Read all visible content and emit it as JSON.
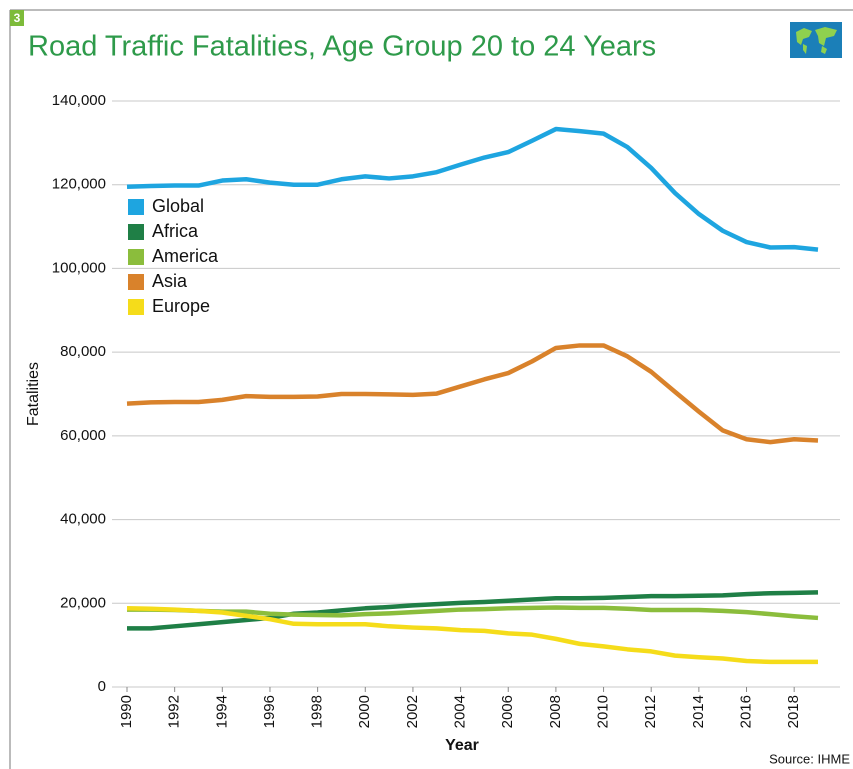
{
  "chart_data": {
    "type": "line",
    "badge": "3",
    "title": "Road Traffic Fatalities, Age Group 20 to 24 Years",
    "ylabel": "Fatalities",
    "xlabel": "Year",
    "source": "Source: IHME",
    "x": [
      1990,
      1991,
      1992,
      1993,
      1994,
      1995,
      1996,
      1997,
      1998,
      1999,
      2000,
      2001,
      2002,
      2003,
      2004,
      2005,
      2006,
      2007,
      2008,
      2009,
      2010,
      2011,
      2012,
      2013,
      2014,
      2015,
      2016,
      2017,
      2018,
      2019
    ],
    "xlim": [
      1990,
      2019
    ],
    "xticks": [
      1990,
      1992,
      1994,
      1996,
      1998,
      2000,
      2002,
      2004,
      2006,
      2008,
      2010,
      2012,
      2014,
      2016,
      2018
    ],
    "ylim": [
      0,
      140000
    ],
    "yticks": [
      0,
      {
        "value": 20000,
        "label": "20,000"
      },
      {
        "value": 40000,
        "label": "40,000"
      },
      {
        "value": 60000,
        "label": "60,000"
      },
      {
        "value": 80000,
        "label": "80,000"
      },
      {
        "value": 100000,
        "label": "100,000"
      },
      {
        "value": 120000,
        "label": "120,000"
      },
      {
        "value": 140000,
        "label": "140,000"
      }
    ],
    "grid": true,
    "legend": "upper left",
    "series": [
      {
        "name": "Global",
        "color": "#1ea5e0",
        "values": [
          119500,
          119700,
          119800,
          119800,
          121000,
          121300,
          120500,
          120000,
          120000,
          121300,
          122000,
          121500,
          122000,
          123000,
          124800,
          126500,
          127800,
          130500,
          133300,
          132800,
          132200,
          129000,
          124000,
          118000,
          113000,
          109000,
          106300,
          105000,
          105100,
          104500
        ]
      },
      {
        "name": "Africa",
        "color": "#1f7f46",
        "values": [
          14000,
          14000,
          14500,
          15000,
          15500,
          16000,
          16500,
          17500,
          17800,
          18300,
          18800,
          19100,
          19500,
          19800,
          20100,
          20300,
          20600,
          20900,
          21200,
          21200,
          21300,
          21500,
          21700,
          21700,
          21800,
          21900,
          22200,
          22400,
          22500,
          22600
        ]
      },
      {
        "name": "America",
        "color": "#8bbd3c",
        "values": [
          18500,
          18500,
          18400,
          18200,
          18000,
          18000,
          17500,
          17300,
          17200,
          17100,
          17400,
          17600,
          17900,
          18200,
          18500,
          18600,
          18800,
          18900,
          19000,
          18900,
          18900,
          18700,
          18400,
          18400,
          18400,
          18200,
          17900,
          17400,
          16900,
          16500
        ]
      },
      {
        "name": "Asia",
        "color": "#d9822b",
        "values": [
          67700,
          68000,
          68100,
          68100,
          68600,
          69500,
          69300,
          69300,
          69400,
          70000,
          70000,
          69900,
          69800,
          70100,
          71800,
          73500,
          75000,
          77800,
          81000,
          81600,
          81600,
          79000,
          75300,
          70500,
          65800,
          61300,
          59200,
          58500,
          59200,
          58900
        ]
      },
      {
        "name": "Europe",
        "color": "#f5dc1a",
        "values": [
          18800,
          18700,
          18500,
          18200,
          17800,
          17000,
          16200,
          15100,
          15000,
          15000,
          15000,
          14500,
          14200,
          14000,
          13600,
          13400,
          12800,
          12500,
          11500,
          10300,
          9700,
          9000,
          8500,
          7500,
          7100,
          6800,
          6200,
          6000,
          6000,
          6000
        ]
      }
    ]
  }
}
